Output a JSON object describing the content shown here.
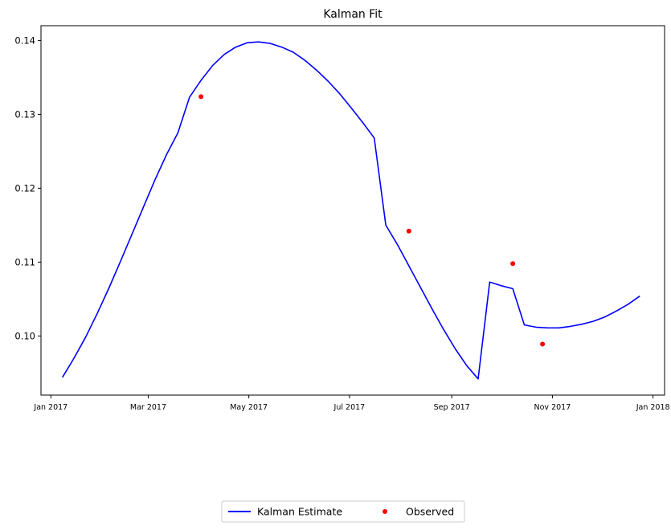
{
  "chart_data": {
    "type": "line",
    "title": "Kalman Fit",
    "xlabel": "",
    "ylabel": "",
    "xlim": [
      "2016-12-26",
      "2018-01-08"
    ],
    "ylim": [
      0.092,
      0.142
    ],
    "yticks": [
      0.1,
      0.11,
      0.12,
      0.13,
      0.14
    ],
    "yticklabels": [
      "0.10",
      "0.11",
      "0.12",
      "0.13",
      "0.14"
    ],
    "xticks": [
      "2017-01-01",
      "2017-03-01",
      "2017-05-01",
      "2017-07-01",
      "2017-09-01",
      "2017-11-01",
      "2018-01-01"
    ],
    "xticklabels": [
      "Jan 2017",
      "Mar 2017",
      "May 2017",
      "Jul 2017",
      "Sep 2017",
      "Nov 2017",
      "Jan 2018"
    ],
    "grid": false,
    "legend": {
      "placement": "bottom-center",
      "columns": 2
    },
    "series": [
      {
        "name": "Kalman Estimate",
        "kind": "line",
        "color": "#0000ff",
        "x": [
          "2017-01-08",
          "2017-01-15",
          "2017-01-22",
          "2017-01-29",
          "2017-02-05",
          "2017-02-12",
          "2017-02-19",
          "2017-02-26",
          "2017-03-05",
          "2017-03-12",
          "2017-03-19",
          "2017-03-26",
          "2017-04-02",
          "2017-04-09",
          "2017-04-16",
          "2017-04-23",
          "2017-04-30",
          "2017-05-07",
          "2017-05-14",
          "2017-05-21",
          "2017-05-28",
          "2017-06-04",
          "2017-06-11",
          "2017-06-18",
          "2017-06-25",
          "2017-07-02",
          "2017-07-09",
          "2017-07-16",
          "2017-07-23",
          "2017-07-30",
          "2017-08-06",
          "2017-08-13",
          "2017-08-20",
          "2017-08-27",
          "2017-09-03",
          "2017-09-10",
          "2017-09-17",
          "2017-09-24",
          "2017-10-01",
          "2017-10-08",
          "2017-10-15",
          "2017-10-22",
          "2017-10-29",
          "2017-11-05",
          "2017-11-12",
          "2017-11-19",
          "2017-11-26",
          "2017-12-03",
          "2017-12-10",
          "2017-12-17",
          "2017-12-24"
        ],
        "y": [
          0.0944,
          0.097,
          0.0998,
          0.103,
          0.1064,
          0.11,
          0.1137,
          0.1174,
          0.1211,
          0.1245,
          0.1275,
          0.1323,
          0.1346,
          0.1366,
          0.1381,
          0.1391,
          0.1397,
          0.1398,
          0.1396,
          0.1391,
          0.1384,
          0.1373,
          0.136,
          0.1345,
          0.1328,
          0.1309,
          0.1289,
          0.1268,
          0.115,
          0.1124,
          0.1095,
          0.1066,
          0.1037,
          0.1009,
          0.0983,
          0.096,
          0.0942,
          0.1073,
          0.1068,
          0.1064,
          0.1015,
          0.1012,
          0.1011,
          0.1011,
          0.1013,
          0.1016,
          0.102,
          0.1026,
          0.1034,
          0.1043,
          0.1054
        ]
      },
      {
        "name": "Observed",
        "kind": "scatter",
        "color": "#ff0000",
        "x": [
          "2017-04-02",
          "2017-08-06",
          "2017-10-08",
          "2017-10-26"
        ],
        "y": [
          0.1324,
          0.1142,
          0.1098,
          0.0989
        ]
      }
    ]
  }
}
